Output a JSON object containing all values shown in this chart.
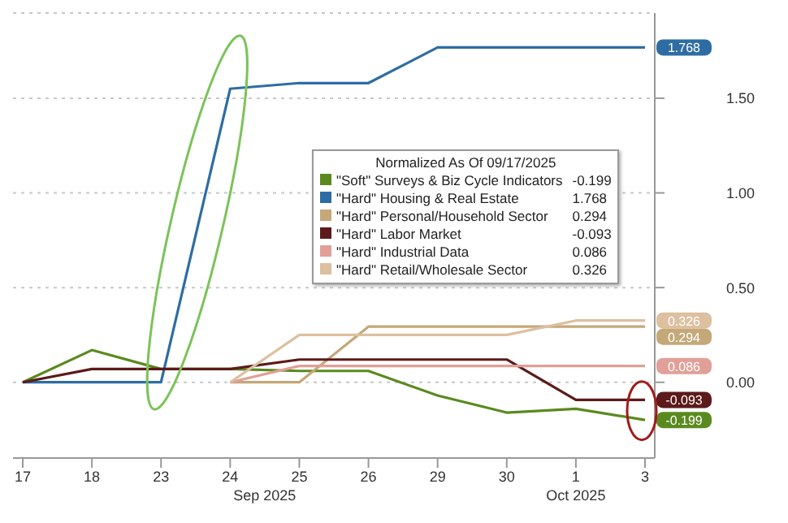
{
  "chart_data": {
    "type": "line",
    "categories": [
      "17",
      "18",
      "23",
      "24",
      "25",
      "26",
      "29",
      "30",
      "1",
      "3"
    ],
    "legend_title": "Normalized As Of 09/17/2025",
    "legend": "top",
    "grid": "y",
    "ylim": [
      -0.4,
      1.95
    ],
    "yticks": [
      {
        "value": 0,
        "label": "0.00"
      },
      {
        "value": 0.5,
        "label": "0.50"
      },
      {
        "value": 1,
        "label": "1.00"
      },
      {
        "value": 1.5,
        "label": "1.50"
      }
    ],
    "annotations": [
      "Sep 2025",
      "Oct 2025"
    ],
    "series": [
      {
        "name": "\"Soft\" Surveys & Biz Cycle Indicators -0.199",
        "color": "#5a8a1f",
        "values": [
          0,
          0.17,
          0.07,
          0.07,
          0.06,
          0.06,
          -0.07,
          -0.16,
          -0.14,
          -0.199
        ],
        "value_labels": [
          null,
          null,
          null,
          null,
          null,
          null,
          null,
          null,
          null,
          "-0.199"
        ]
      },
      {
        "name": "\"Hard\" Housing & Real Estate 1.768",
        "color": "#2e6da4",
        "values": [
          0,
          0,
          0,
          1.55,
          1.58,
          1.58,
          1.768,
          1.768,
          1.768,
          1.768
        ],
        "value_labels": [
          null,
          null,
          null,
          null,
          null,
          null,
          null,
          null,
          null,
          "1.768"
        ]
      },
      {
        "name": "\"Hard\" Personal/Household Sector 0.294",
        "color": "#c4a878",
        "values": [
          null,
          null,
          null,
          0,
          0,
          0.294,
          0.294,
          0.294,
          0.294,
          0.294
        ],
        "value_labels": [
          null,
          null,
          null,
          null,
          null,
          null,
          null,
          null,
          null,
          "0.294"
        ]
      },
      {
        "name": "\"Hard\" Labor Market -0.093",
        "color": "#5c1a1a",
        "values": [
          0,
          0.07,
          0.07,
          0.07,
          0.12,
          0.12,
          0.12,
          0.12,
          -0.093,
          -0.093
        ],
        "value_labels": [
          null,
          null,
          null,
          null,
          null,
          null,
          null,
          null,
          null,
          "-0.093"
        ]
      },
      {
        "name": "\"Hard\" Industrial Data 0.086",
        "color": "#e0a098",
        "values": [
          null,
          null,
          null,
          0,
          0.086,
          0.086,
          0.086,
          0.086,
          0.086,
          0.086
        ],
        "value_labels": [
          null,
          null,
          null,
          null,
          null,
          null,
          null,
          null,
          null,
          "0.086"
        ]
      },
      {
        "name": "\"Hard\" Retail/Wholesale Sector 0.326",
        "color": "#dcc0a0",
        "values": [
          null,
          null,
          null,
          0,
          0.25,
          0.25,
          0.25,
          0.25,
          0.326,
          0.326
        ],
        "value_labels": [
          null,
          null,
          null,
          null,
          null,
          null,
          null,
          null,
          null,
          "0.326"
        ]
      }
    ]
  }
}
